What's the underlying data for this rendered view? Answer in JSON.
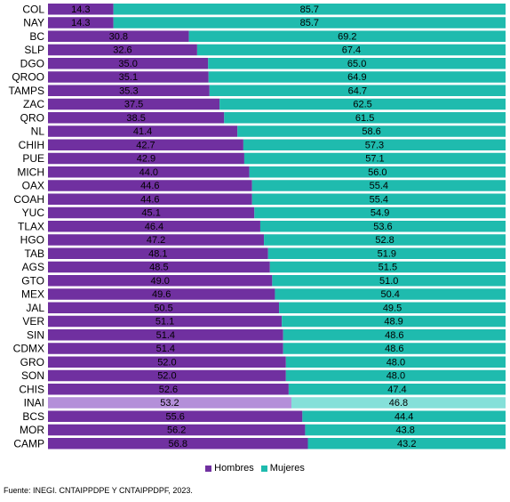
{
  "chart_data": {
    "type": "bar",
    "orientation": "horizontal",
    "stacked": "100%",
    "categories": [
      "COL",
      "NAY",
      "BC",
      "SLP",
      "DGO",
      "QROO",
      "TAMPS",
      "ZAC",
      "QRO",
      "NL",
      "CHIH",
      "PUE",
      "MICH",
      "OAX",
      "COAH",
      "YUC",
      "TLAX",
      "HGO",
      "TAB",
      "AGS",
      "GTO",
      "MEX",
      "JAL",
      "VER",
      "SIN",
      "CDMX",
      "GRO",
      "SON",
      "CHIS",
      "INAI",
      "BCS",
      "MOR",
      "CAMP"
    ],
    "series": [
      {
        "name": "Hombres",
        "color": "#7030A0",
        "values": [
          14.3,
          14.3,
          30.8,
          32.6,
          35.0,
          35.1,
          35.3,
          37.5,
          38.5,
          41.4,
          42.7,
          42.9,
          44.0,
          44.6,
          44.6,
          45.1,
          46.4,
          47.2,
          48.1,
          48.5,
          49.0,
          49.6,
          50.5,
          51.1,
          51.4,
          51.4,
          52.0,
          52.0,
          52.6,
          53.2,
          55.6,
          56.2,
          56.8
        ],
        "labels": [
          "14.3",
          "14.3",
          "30.8",
          "32.6",
          "35.0",
          "35.1",
          "35.3",
          "37.5",
          "38.5",
          "41.4",
          "42.7",
          "42.9",
          "44.0",
          "44.6",
          "44.6",
          "45.1",
          "46.4",
          "47.2",
          "48.1",
          "48.5",
          "49.0",
          "49.6",
          "50.5",
          "51.1",
          "51.4",
          "51.4",
          "52.0",
          "52.0",
          "52.6",
          "53.2",
          "55.6",
          "56.2",
          "56.8"
        ]
      },
      {
        "name": "Mujeres",
        "color": "#1FBBAE",
        "values": [
          85.7,
          85.7,
          69.2,
          67.4,
          65.0,
          64.9,
          64.7,
          62.5,
          61.5,
          58.6,
          57.3,
          57.1,
          56.0,
          55.4,
          55.4,
          54.9,
          53.6,
          52.8,
          51.9,
          51.5,
          51.0,
          50.4,
          49.5,
          48.9,
          48.6,
          48.6,
          48.0,
          48.0,
          47.4,
          46.8,
          44.4,
          43.8,
          43.2
        ],
        "labels": [
          "85.7",
          "85.7",
          "69.2",
          "67.4",
          "65.0",
          "64.9",
          "64.7",
          "62.5",
          "61.5",
          "58.6",
          "57.3",
          "57.1",
          "56.0",
          "55.4",
          "55.4",
          "54.9",
          "53.6",
          "52.8",
          "51.9",
          "51.5",
          "51.0",
          "50.4",
          "49.5",
          "48.9",
          "48.6",
          "48.6",
          "48.0",
          "48.0",
          "47.4",
          "46.8",
          "44.4",
          "43.8",
          "43.2"
        ]
      }
    ],
    "highlight": {
      "category": "INAI",
      "colors": [
        "#B48FD9",
        "#85E0D9"
      ]
    },
    "xlim": [
      0,
      100
    ],
    "legend_position": "bottom",
    "grid": false
  },
  "legend": {
    "hombres": "Hombres",
    "mujeres": "Mujeres"
  },
  "source": "Fuente: INEGI. CNTAIPPDPE Y CNTAIPPDPF, 2023."
}
